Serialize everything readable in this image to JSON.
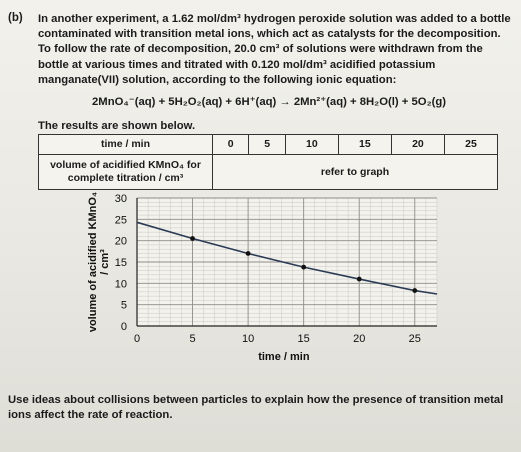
{
  "question": {
    "letter": "(b)",
    "intro": "In another experiment, a 1.62 mol/dm³ hydrogen peroxide solution was added to a bottle contaminated with transition metal ions, which act as catalysts for the decomposition. To follow the rate of decomposition, 20.0 cm³ of solutions were withdrawn from the bottle at various times and titrated with 0.120 mol/dm³ acidified potassium manganate(VII) solution, according to the following ionic equation:",
    "equation": "2MnO₄⁻(aq) + 5H₂O₂(aq) + 6H⁺(aq) → 2Mn²⁺(aq) + 8H₂O(l) + 5O₂(g)",
    "results_caption": "The results are shown below.",
    "prompt": "Use ideas about collisions between particles to explain how the presence of transition metal ions affect the rate of reaction."
  },
  "results_table": {
    "row1_header": "time / min",
    "times": [
      "0",
      "5",
      "10",
      "15",
      "20",
      "25"
    ],
    "row2_header_line1": "volume of acidified KMnO₄ for",
    "row2_header_line2": "complete titration / cm³",
    "row2_value": "refer to graph"
  },
  "chart_data": {
    "type": "line",
    "xlabel": "time / min",
    "ylabel_line1": "volume of acidified KMnO₄",
    "ylabel_line2": "/ cm³",
    "xlim": [
      0,
      27
    ],
    "ylim": [
      0,
      30
    ],
    "x_ticks": [
      "0",
      "5",
      "10",
      "15",
      "20",
      "25"
    ],
    "y_ticks": [
      "0",
      "5",
      "10",
      "15",
      "20",
      "25",
      "30"
    ],
    "grid": true,
    "line_color": "#2b3b55",
    "series": [
      {
        "x": [
          0,
          5,
          10,
          15,
          20,
          25,
          27
        ],
        "y": [
          24.3,
          20.5,
          17.0,
          13.8,
          11.0,
          8.3,
          7.5
        ],
        "markers": [
          5,
          10,
          15,
          20,
          25
        ]
      }
    ]
  }
}
